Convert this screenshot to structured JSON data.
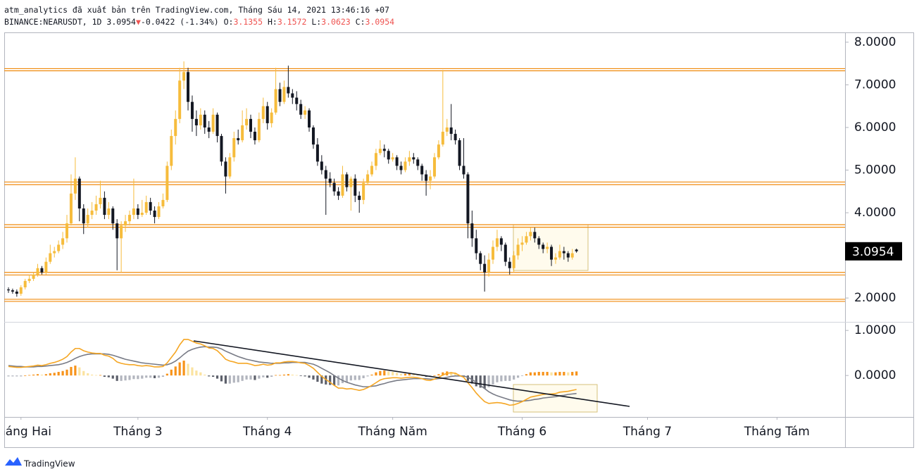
{
  "header": {
    "publisher": "atm_analytics đã xuất bản trên TradingView.com, Tháng Sáu 14, 2021 13:46:16 +07",
    "symbol": "BINANCE:NEARUSDT, 1D",
    "arrow": "▼",
    "change": "-0.0422 (-1.34%)",
    "o": "O:",
    "h": "H:",
    "l": "L:",
    "c": "C:"
  },
  "footer": {
    "brand": "TradingView"
  },
  "chart_data": {
    "type": "candlestick",
    "x": [
      0,
      1,
      2,
      3,
      4,
      5,
      6,
      7,
      8,
      9,
      10,
      11,
      12,
      13,
      14,
      15,
      16,
      17,
      18,
      19,
      20,
      21,
      22,
      23,
      24,
      25,
      26,
      27,
      28,
      29,
      30,
      31,
      32,
      33,
      34,
      35,
      36,
      37,
      38,
      39,
      40,
      41,
      42,
      43,
      44,
      45,
      46,
      47,
      48,
      49,
      50,
      51,
      52,
      53,
      54,
      55,
      56,
      57,
      58,
      59,
      60,
      61,
      62,
      63,
      64,
      65,
      66,
      67,
      68,
      69,
      70,
      71,
      72,
      73,
      74,
      75,
      76,
      77,
      78,
      79,
      80,
      81,
      82,
      83,
      84,
      85,
      86,
      87,
      88,
      89,
      90,
      91,
      92,
      93,
      94,
      95,
      96,
      97,
      98,
      99,
      100,
      101,
      102,
      103,
      104,
      105,
      106,
      107,
      108,
      109,
      110,
      111,
      112,
      113,
      114,
      115,
      116,
      117,
      118,
      119,
      120,
      121,
      122,
      123,
      124,
      125,
      126,
      127,
      128,
      129,
      130,
      131,
      132,
      133,
      134,
      135,
      136
    ],
    "candles": [
      [
        2.2,
        2.25,
        2.12,
        2.18
      ],
      [
        2.18,
        2.22,
        2.1,
        2.15
      ],
      [
        2.15,
        2.2,
        2.03,
        2.1
      ],
      [
        2.1,
        2.3,
        2.05,
        2.25
      ],
      [
        2.25,
        2.45,
        2.2,
        2.4
      ],
      [
        2.4,
        2.55,
        2.35,
        2.45
      ],
      [
        2.45,
        2.6,
        2.4,
        2.55
      ],
      [
        2.55,
        2.8,
        2.5,
        2.7
      ],
      [
        2.7,
        2.75,
        2.55,
        2.6
      ],
      [
        2.6,
        2.95,
        2.55,
        2.85
      ],
      [
        2.85,
        3.25,
        2.8,
        3.05
      ],
      [
        3.05,
        3.2,
        2.95,
        3.1
      ],
      [
        3.1,
        3.35,
        3.05,
        3.25
      ],
      [
        3.25,
        3.55,
        3.15,
        3.4
      ],
      [
        3.4,
        3.95,
        3.3,
        3.75
      ],
      [
        3.75,
        4.9,
        3.7,
        4.45
      ],
      [
        4.45,
        5.3,
        4.3,
        4.8
      ],
      [
        4.8,
        4.85,
        3.8,
        4.1
      ],
      [
        4.1,
        4.2,
        3.5,
        3.75
      ],
      [
        3.75,
        4.1,
        3.65,
        3.95
      ],
      [
        3.95,
        4.25,
        3.85,
        4.05
      ],
      [
        4.05,
        4.4,
        3.95,
        4.2
      ],
      [
        4.2,
        4.75,
        4.1,
        4.35
      ],
      [
        4.35,
        4.5,
        3.85,
        3.95
      ],
      [
        3.95,
        4.25,
        3.85,
        4.1
      ],
      [
        4.1,
        4.15,
        3.6,
        3.75
      ],
      [
        3.75,
        3.85,
        2.65,
        3.4
      ],
      [
        3.4,
        3.8,
        2.6,
        3.7
      ],
      [
        3.7,
        3.95,
        3.55,
        3.8
      ],
      [
        3.8,
        4.05,
        3.7,
        3.95
      ],
      [
        3.95,
        4.8,
        3.85,
        4.1
      ],
      [
        4.1,
        4.2,
        3.85,
        3.95
      ],
      [
        3.95,
        4.3,
        3.9,
        4.0
      ],
      [
        4.0,
        4.4,
        3.95,
        4.25
      ],
      [
        4.25,
        4.35,
        3.95,
        4.05
      ],
      [
        4.05,
        4.15,
        3.75,
        3.9
      ],
      [
        3.9,
        4.25,
        3.85,
        4.15
      ],
      [
        4.15,
        4.45,
        4.1,
        4.3
      ],
      [
        4.3,
        5.2,
        4.25,
        5.1
      ],
      [
        5.1,
        5.95,
        5.0,
        5.8
      ],
      [
        5.8,
        6.4,
        5.6,
        6.2
      ],
      [
        6.2,
        7.4,
        6.1,
        7.1
      ],
      [
        7.1,
        7.55,
        6.9,
        7.3
      ],
      [
        7.3,
        7.4,
        6.4,
        6.6
      ],
      [
        6.6,
        6.75,
        5.9,
        6.2
      ],
      [
        6.2,
        6.4,
        5.8,
        6.05
      ],
      [
        6.05,
        6.45,
        5.95,
        6.3
      ],
      [
        6.3,
        6.4,
        5.85,
        6.0
      ],
      [
        6.0,
        6.15,
        5.75,
        5.9
      ],
      [
        5.9,
        6.45,
        5.85,
        6.3
      ],
      [
        6.3,
        6.35,
        5.65,
        5.8
      ],
      [
        5.8,
        5.85,
        5.1,
        5.2
      ],
      [
        5.2,
        5.3,
        4.45,
        4.85
      ],
      [
        4.85,
        5.4,
        4.8,
        5.3
      ],
      [
        5.3,
        5.9,
        5.2,
        5.75
      ],
      [
        5.75,
        5.95,
        5.6,
        5.7
      ],
      [
        5.7,
        6.4,
        5.65,
        6.05
      ],
      [
        6.05,
        6.45,
        5.95,
        6.2
      ],
      [
        6.2,
        6.3,
        5.75,
        5.9
      ],
      [
        5.9,
        6.0,
        5.6,
        5.7
      ],
      [
        5.7,
        6.35,
        5.65,
        6.2
      ],
      [
        6.2,
        6.7,
        6.1,
        6.5
      ],
      [
        6.5,
        6.6,
        5.95,
        6.1
      ],
      [
        6.1,
        6.45,
        6.0,
        6.35
      ],
      [
        6.35,
        7.4,
        6.3,
        6.9
      ],
      [
        6.9,
        7.05,
        6.5,
        6.6
      ],
      [
        6.6,
        7.1,
        6.55,
        6.95
      ],
      [
        6.95,
        7.45,
        6.7,
        6.8
      ],
      [
        6.8,
        6.9,
        6.55,
        6.7
      ],
      [
        6.7,
        6.85,
        6.4,
        6.55
      ],
      [
        6.55,
        6.65,
        6.2,
        6.3
      ],
      [
        6.3,
        6.5,
        6.2,
        6.4
      ],
      [
        6.4,
        6.45,
        5.9,
        6.0
      ],
      [
        6.0,
        6.05,
        5.5,
        5.6
      ],
      [
        5.6,
        5.75,
        5.1,
        5.2
      ],
      [
        5.2,
        5.35,
        4.9,
        5.0
      ],
      [
        5.0,
        5.1,
        3.95,
        4.8
      ],
      [
        4.8,
        4.95,
        4.6,
        4.7
      ],
      [
        4.7,
        4.8,
        4.4,
        4.5
      ],
      [
        4.5,
        4.6,
        4.3,
        4.4
      ],
      [
        4.4,
        5.1,
        4.35,
        4.9
      ],
      [
        4.9,
        4.95,
        4.5,
        4.6
      ],
      [
        4.6,
        4.85,
        4.05,
        4.8
      ],
      [
        4.8,
        4.9,
        4.25,
        4.4
      ],
      [
        4.4,
        4.5,
        4.0,
        4.3
      ],
      [
        4.3,
        4.8,
        4.2,
        4.7
      ],
      [
        4.7,
        5.0,
        4.65,
        4.9
      ],
      [
        4.9,
        5.2,
        4.85,
        5.1
      ],
      [
        5.1,
        5.5,
        5.0,
        5.4
      ],
      [
        5.4,
        5.7,
        5.35,
        5.5
      ],
      [
        5.5,
        5.6,
        5.3,
        5.45
      ],
      [
        5.45,
        5.5,
        5.15,
        5.25
      ],
      [
        5.25,
        5.4,
        5.2,
        5.3
      ],
      [
        5.3,
        5.35,
        5.0,
        5.1
      ],
      [
        5.1,
        5.2,
        4.9,
        5.0
      ],
      [
        5.0,
        5.3,
        4.95,
        5.2
      ],
      [
        5.2,
        5.45,
        5.1,
        5.3
      ],
      [
        5.3,
        5.4,
        5.15,
        5.25
      ],
      [
        5.25,
        5.3,
        5.0,
        5.1
      ],
      [
        5.1,
        5.15,
        4.75,
        4.9
      ],
      [
        4.9,
        5.0,
        4.4,
        4.75
      ],
      [
        4.75,
        5.0,
        4.55,
        4.85
      ],
      [
        4.85,
        5.4,
        4.8,
        5.3
      ],
      [
        5.3,
        5.7,
        5.25,
        5.6
      ],
      [
        5.6,
        7.35,
        5.55,
        5.9
      ],
      [
        5.9,
        6.2,
        5.8,
        6.0
      ],
      [
        6.0,
        6.55,
        5.7,
        5.85
      ],
      [
        5.85,
        5.95,
        5.6,
        5.7
      ],
      [
        5.7,
        5.75,
        5.0,
        5.1
      ],
      [
        5.1,
        5.75,
        4.8,
        4.9
      ],
      [
        4.9,
        4.95,
        3.4,
        3.75
      ],
      [
        3.75,
        4.05,
        3.2,
        3.4
      ],
      [
        3.4,
        3.6,
        2.9,
        3.05
      ],
      [
        3.05,
        3.1,
        2.65,
        2.8
      ],
      [
        2.8,
        3.0,
        2.15,
        2.6
      ],
      [
        2.6,
        3.05,
        2.5,
        2.9
      ],
      [
        2.9,
        3.35,
        2.8,
        3.2
      ],
      [
        3.2,
        3.6,
        3.1,
        3.4
      ],
      [
        3.4,
        3.45,
        3.1,
        3.25
      ],
      [
        3.25,
        3.3,
        2.75,
        2.85
      ],
      [
        2.85,
        2.95,
        2.55,
        2.7
      ],
      [
        2.7,
        3.1,
        2.6,
        3.0
      ],
      [
        3.0,
        3.4,
        2.9,
        3.25
      ],
      [
        3.25,
        3.45,
        3.1,
        3.3
      ],
      [
        3.3,
        3.55,
        3.25,
        3.45
      ],
      [
        3.45,
        3.65,
        3.35,
        3.55
      ],
      [
        3.55,
        3.65,
        3.3,
        3.4
      ],
      [
        3.4,
        3.45,
        3.15,
        3.25
      ],
      [
        3.25,
        3.3,
        3.05,
        3.15
      ],
      [
        3.15,
        3.3,
        3.05,
        3.2
      ],
      [
        3.2,
        3.25,
        2.75,
        2.9
      ],
      [
        2.9,
        3.05,
        2.8,
        2.95
      ],
      [
        2.95,
        3.25,
        2.9,
        3.1
      ],
      [
        3.1,
        3.2,
        2.9,
        3.05
      ],
      [
        3.05,
        3.1,
        2.85,
        2.95
      ],
      [
        2.95,
        3.15,
        2.9,
        3.05
      ],
      [
        3.1355,
        3.1572,
        3.0623,
        3.0954
      ]
    ],
    "up_color": "#f6bc3c",
    "down_color": "#131722",
    "levels": [
      7.38,
      7.33,
      4.72,
      4.66,
      3.72,
      3.66,
      2.6,
      2.54,
      1.97,
      1.92
    ],
    "level_color": "#f08a0c",
    "xlim": [
      -1.01,
      200.3
    ],
    "xticks": [
      {
        "value": 3,
        "label": "Tháng Hai"
      },
      {
        "value": 31,
        "label": "Tháng 3"
      },
      {
        "value": 62,
        "label": "Tháng 4"
      },
      {
        "value": 92,
        "label": "Tháng Năm"
      },
      {
        "value": 123,
        "label": "Tháng 6"
      },
      {
        "value": 153,
        "label": "Tháng 7"
      },
      {
        "value": 184,
        "label": "Tháng Tám"
      }
    ],
    "ylim": [
      1.44,
      8.23
    ],
    "yticks": [
      {
        "value": 8,
        "label": "8.0000"
      },
      {
        "value": 7,
        "label": "7.0000"
      },
      {
        "value": 6,
        "label": "6.0000"
      },
      {
        "value": 5,
        "label": "5.0000"
      },
      {
        "value": 4,
        "label": "4.0000"
      },
      {
        "value": 2,
        "label": "2.0000"
      }
    ],
    "y2lim": [
      -0.92,
      1.19
    ],
    "y2ticks": [
      {
        "value": 1,
        "label": "1.0000"
      },
      {
        "value": 0,
        "label": "0.0000"
      }
    ],
    "macd": {
      "axis": "y2",
      "color": "#f5a623",
      "values": [
        0.2,
        0.19,
        0.18,
        0.18,
        0.19,
        0.2,
        0.21,
        0.23,
        0.22,
        0.24,
        0.27,
        0.29,
        0.32,
        0.36,
        0.42,
        0.52,
        0.6,
        0.6,
        0.55,
        0.52,
        0.5,
        0.49,
        0.49,
        0.45,
        0.43,
        0.38,
        0.3,
        0.27,
        0.25,
        0.24,
        0.24,
        0.22,
        0.21,
        0.22,
        0.21,
        0.19,
        0.19,
        0.2,
        0.28,
        0.4,
        0.52,
        0.68,
        0.8,
        0.8,
        0.76,
        0.72,
        0.7,
        0.66,
        0.61,
        0.6,
        0.55,
        0.46,
        0.36,
        0.32,
        0.3,
        0.27,
        0.27,
        0.27,
        0.25,
        0.22,
        0.23,
        0.25,
        0.23,
        0.24,
        0.28,
        0.28,
        0.3,
        0.31,
        0.31,
        0.3,
        0.28,
        0.27,
        0.22,
        0.16,
        0.07,
        -0.02,
        -0.09,
        -0.15,
        -0.22,
        -0.28,
        -0.28,
        -0.3,
        -0.29,
        -0.31,
        -0.33,
        -0.31,
        -0.27,
        -0.22,
        -0.16,
        -0.1,
        -0.07,
        -0.06,
        -0.05,
        -0.05,
        -0.06,
        -0.05,
        -0.04,
        -0.04,
        -0.05,
        -0.07,
        -0.1,
        -0.11,
        -0.08,
        -0.04,
        0.01,
        0.05,
        0.06,
        0.05,
        0.0,
        -0.04,
        -0.16,
        -0.27,
        -0.39,
        -0.49,
        -0.58,
        -0.62,
        -0.61,
        -0.6,
        -0.61,
        -0.63,
        -0.66,
        -0.65,
        -0.62,
        -0.58,
        -0.53,
        -0.48,
        -0.46,
        -0.44,
        -0.42,
        -0.41,
        -0.41,
        -0.4,
        -0.37,
        -0.36,
        -0.35,
        -0.33,
        -0.31
      ]
    },
    "signal": {
      "axis": "y2",
      "color": "#787b86",
      "values": [
        0.22,
        0.21,
        0.2,
        0.2,
        0.19,
        0.19,
        0.19,
        0.2,
        0.2,
        0.21,
        0.22,
        0.23,
        0.24,
        0.26,
        0.29,
        0.33,
        0.38,
        0.42,
        0.45,
        0.47,
        0.48,
        0.48,
        0.48,
        0.48,
        0.47,
        0.45,
        0.42,
        0.39,
        0.36,
        0.34,
        0.32,
        0.3,
        0.28,
        0.27,
        0.26,
        0.25,
        0.24,
        0.23,
        0.24,
        0.27,
        0.32,
        0.39,
        0.47,
        0.54,
        0.58,
        0.61,
        0.63,
        0.64,
        0.63,
        0.63,
        0.62,
        0.59,
        0.54,
        0.5,
        0.46,
        0.42,
        0.39,
        0.36,
        0.34,
        0.32,
        0.3,
        0.29,
        0.28,
        0.27,
        0.27,
        0.27,
        0.28,
        0.28,
        0.29,
        0.29,
        0.29,
        0.29,
        0.27,
        0.25,
        0.21,
        0.16,
        0.11,
        0.06,
        0.0,
        -0.06,
        -0.11,
        -0.15,
        -0.18,
        -0.21,
        -0.23,
        -0.25,
        -0.25,
        -0.24,
        -0.23,
        -0.2,
        -0.18,
        -0.15,
        -0.13,
        -0.11,
        -0.1,
        -0.09,
        -0.08,
        -0.07,
        -0.07,
        -0.07,
        -0.07,
        -0.08,
        -0.08,
        -0.07,
        -0.06,
        -0.04,
        -0.02,
        -0.01,
        -0.01,
        -0.01,
        -0.04,
        -0.09,
        -0.15,
        -0.22,
        -0.29,
        -0.36,
        -0.41,
        -0.45,
        -0.48,
        -0.51,
        -0.54,
        -0.56,
        -0.57,
        -0.57,
        -0.56,
        -0.55,
        -0.53,
        -0.52,
        -0.5,
        -0.49,
        -0.48,
        -0.47,
        -0.45,
        -0.44,
        -0.42,
        -0.41,
        -0.4
      ]
    },
    "histogram": {
      "axis": "y2",
      "colors": [
        "#f7931a",
        "#fbe3a0",
        "#5d606b",
        "#b2b5be"
      ],
      "values": [
        -0.02,
        -0.02,
        -0.02,
        -0.02,
        0.0,
        0.01,
        0.02,
        0.03,
        0.02,
        0.03,
        0.05,
        0.06,
        0.08,
        0.1,
        0.13,
        0.19,
        0.22,
        0.18,
        0.1,
        0.05,
        0.02,
        0.01,
        0.01,
        -0.03,
        -0.04,
        -0.07,
        -0.12,
        -0.12,
        -0.11,
        -0.1,
        -0.08,
        -0.08,
        -0.07,
        -0.05,
        -0.05,
        -0.06,
        -0.05,
        -0.03,
        0.04,
        0.13,
        0.2,
        0.29,
        0.33,
        0.26,
        0.18,
        0.11,
        0.07,
        0.02,
        -0.02,
        -0.03,
        -0.07,
        -0.13,
        -0.18,
        -0.18,
        -0.16,
        -0.15,
        -0.12,
        -0.09,
        -0.09,
        -0.1,
        -0.07,
        -0.04,
        -0.05,
        -0.03,
        0.01,
        0.01,
        0.02,
        0.03,
        0.02,
        0.01,
        -0.01,
        -0.02,
        -0.05,
        -0.09,
        -0.14,
        -0.18,
        -0.2,
        -0.21,
        -0.22,
        -0.22,
        -0.17,
        -0.15,
        -0.11,
        -0.1,
        -0.1,
        -0.06,
        -0.02,
        0.02,
        0.07,
        0.1,
        0.11,
        0.09,
        0.08,
        0.06,
        0.04,
        0.04,
        0.04,
        0.03,
        0.02,
        0.0,
        -0.03,
        -0.03,
        0.0,
        0.03,
        0.07,
        0.09,
        0.08,
        0.06,
        0.01,
        -0.03,
        -0.12,
        -0.18,
        -0.24,
        -0.27,
        -0.29,
        -0.26,
        -0.2,
        -0.15,
        -0.13,
        -0.12,
        -0.12,
        -0.09,
        -0.05,
        -0.01,
        0.03,
        0.07,
        0.07,
        0.08,
        0.08,
        0.08,
        0.07,
        0.07,
        0.08,
        0.08,
        0.07,
        0.08,
        0.09
      ]
    }
  }
}
